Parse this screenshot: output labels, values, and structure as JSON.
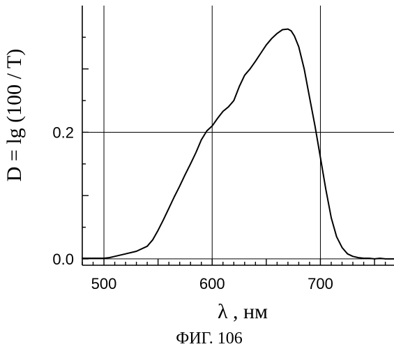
{
  "chart_data": {
    "type": "line",
    "title": "",
    "xlabel": "λ , нм",
    "ylabel": "D = lg (100 / T)",
    "caption": "ФИГ. 106",
    "xlim": [
      480,
      768
    ],
    "ylim": [
      -0.01,
      0.4
    ],
    "x_ticks": [
      500,
      600,
      700
    ],
    "y_ticks": [
      0.0,
      0.2
    ],
    "x_tick_labels": [
      "500",
      "600",
      "700"
    ],
    "y_tick_labels": [
      "0.0",
      "0.2"
    ],
    "grid": true,
    "colors": {
      "line": "#000000",
      "grid": "#000000",
      "background": "#ffffff"
    },
    "series": [
      {
        "x": [
          480,
          490,
          500,
          505,
          510,
          520,
          530,
          540,
          545,
          550,
          555,
          560,
          565,
          570,
          575,
          580,
          585,
          590,
          595,
          600,
          605,
          610,
          615,
          620,
          625,
          630,
          635,
          640,
          645,
          650,
          655,
          660,
          665,
          670,
          673,
          676,
          680,
          685,
          690,
          695,
          700,
          705,
          710,
          715,
          720,
          725,
          730,
          735,
          740,
          745,
          750,
          755,
          760,
          768
        ],
        "y": [
          0.001,
          0.001,
          0.001,
          0.002,
          0.004,
          0.008,
          0.012,
          0.02,
          0.03,
          0.045,
          0.062,
          0.08,
          0.098,
          0.115,
          0.133,
          0.15,
          0.168,
          0.188,
          0.202,
          0.21,
          0.222,
          0.233,
          0.24,
          0.25,
          0.272,
          0.29,
          0.3,
          0.312,
          0.325,
          0.338,
          0.348,
          0.356,
          0.362,
          0.363,
          0.36,
          0.352,
          0.335,
          0.3,
          0.255,
          0.21,
          0.16,
          0.11,
          0.065,
          0.035,
          0.018,
          0.008,
          0.004,
          0.002,
          0.001,
          0.001,
          0.0,
          0.001,
          0.0,
          0.0
        ]
      }
    ]
  }
}
